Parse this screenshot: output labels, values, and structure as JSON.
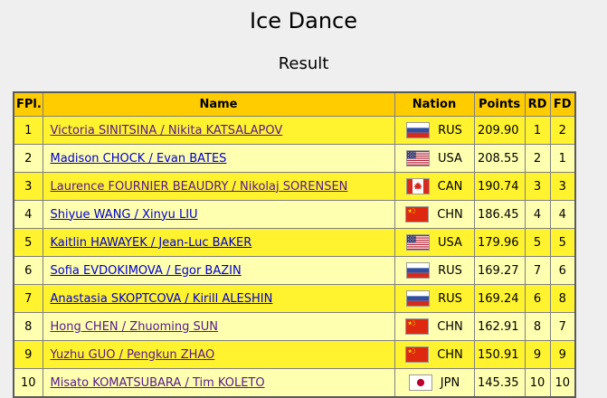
{
  "page": {
    "title": "Ice Dance",
    "subtitle": "Result"
  },
  "colors": {
    "page-bg": "#EFEFEF",
    "header-bg": "#FFCC00",
    "row-odd-bg": "#FFF22E",
    "row-even-bg": "#FFFFB0",
    "border-inner": "#808080",
    "border-outer": "#5A5A5A",
    "link": "#0000CC",
    "link-visited": "#551A8B",
    "text": "#000000"
  },
  "table": {
    "headers": {
      "fpl": "FPl.",
      "name": "Name",
      "nation": "Nation",
      "points": "Points",
      "rd": "RD",
      "fd": "FD"
    },
    "rows": [
      {
        "fpl": "1",
        "name": "Victoria SINITSINA / Nikita KATSALAPOV",
        "nation": "RUS",
        "flag_icon": "flag-rus-icon",
        "points": "209.90",
        "rd": "1",
        "fd": "2",
        "visited": true
      },
      {
        "fpl": "2",
        "name": "Madison CHOCK / Evan BATES",
        "nation": "USA",
        "flag_icon": "flag-usa-icon",
        "points": "208.55",
        "rd": "2",
        "fd": "1",
        "visited": false
      },
      {
        "fpl": "3",
        "name": "Laurence FOURNIER BEAUDRY / Nikolaj SORENSEN",
        "nation": "CAN",
        "flag_icon": "flag-can-icon",
        "points": "190.74",
        "rd": "3",
        "fd": "3",
        "visited": true
      },
      {
        "fpl": "4",
        "name": "Shiyue WANG / Xinyu LIU",
        "nation": "CHN",
        "flag_icon": "flag-chn-icon",
        "points": "186.45",
        "rd": "4",
        "fd": "4",
        "visited": false
      },
      {
        "fpl": "5",
        "name": "Kaitlin HAWAYEK / Jean-Luc BAKER",
        "nation": "USA",
        "flag_icon": "flag-usa-icon",
        "points": "179.96",
        "rd": "5",
        "fd": "5",
        "visited": false
      },
      {
        "fpl": "6",
        "name": "Sofia EVDOKIMOVA / Egor BAZIN",
        "nation": "RUS",
        "flag_icon": "flag-rus-icon",
        "points": "169.27",
        "rd": "7",
        "fd": "6",
        "visited": false
      },
      {
        "fpl": "7",
        "name": "Anastasia SKOPTCOVA / Kirill ALESHIN",
        "nation": "RUS",
        "flag_icon": "flag-rus-icon",
        "points": "169.24",
        "rd": "6",
        "fd": "8",
        "visited": false
      },
      {
        "fpl": "8",
        "name": "Hong CHEN / Zhuoming SUN",
        "nation": "CHN",
        "flag_icon": "flag-chn-icon",
        "points": "162.91",
        "rd": "8",
        "fd": "7",
        "visited": true
      },
      {
        "fpl": "9",
        "name": "Yuzhu GUO / Pengkun ZHAO",
        "nation": "CHN",
        "flag_icon": "flag-chn-icon",
        "points": "150.91",
        "rd": "9",
        "fd": "9",
        "visited": true
      },
      {
        "fpl": "10",
        "name": "Misato KOMATSUBARA / Tim KOLETO",
        "nation": "JPN",
        "flag_icon": "flag-jpn-icon",
        "points": "145.35",
        "rd": "10",
        "fd": "10",
        "visited": true
      }
    ]
  }
}
